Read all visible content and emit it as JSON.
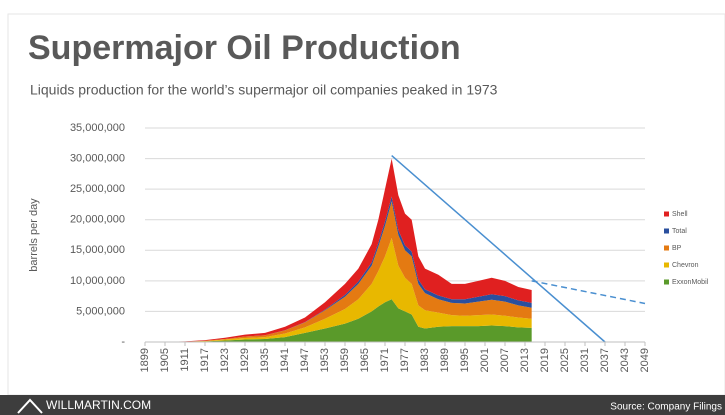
{
  "chart_data": {
    "type": "stacked_area",
    "title": "Supermajor Oil Production",
    "subtitle": "Liquids production for the world’s supermajor oil companies peaked in 1973",
    "y_label": "barrels per day",
    "branding": "WILLMARTIN.COM",
    "source": "Source: Company Filings",
    "x": [
      1899,
      1905,
      1911,
      1917,
      1923,
      1929,
      1935,
      1941,
      1947,
      1953,
      1959,
      1963,
      1967,
      1969,
      1971,
      1973,
      1975,
      1977,
      1979,
      1981,
      1983,
      1987,
      1991,
      1995,
      1999,
      2003,
      2007,
      2011,
      2015
    ],
    "series": [
      {
        "name": "ExxonMobil",
        "color": "#5a9a2a",
        "values": [
          0,
          20000,
          40000,
          100000,
          250000,
          400000,
          500000,
          800000,
          1500000,
          2200000,
          3000000,
          3800000,
          5000000,
          5800000,
          6500000,
          7000000,
          5500000,
          5000000,
          4500000,
          2500000,
          2200000,
          2500000,
          2600000,
          2600000,
          2600000,
          2700000,
          2600000,
          2400000,
          2300000
        ]
      },
      {
        "name": "Chevron",
        "color": "#e8b800",
        "values": [
          0,
          10000,
          20000,
          60000,
          150000,
          250000,
          300000,
          600000,
          900000,
          1600000,
          2400000,
          3200000,
          4500000,
          5800000,
          7500000,
          10000000,
          7000000,
          5500000,
          5000000,
          3500000,
          3000000,
          2300000,
          1800000,
          1700000,
          1800000,
          1800000,
          1700000,
          1600000,
          1500000
        ]
      },
      {
        "name": "BP",
        "color": "#e47a12",
        "values": [
          0,
          0,
          10000,
          40000,
          100000,
          250000,
          300000,
          500000,
          800000,
          1400000,
          2000000,
          2500000,
          3000000,
          4000000,
          5000000,
          6000000,
          5000000,
          4500000,
          4500000,
          3500000,
          2800000,
          2200000,
          2000000,
          2000000,
          2200000,
          2400000,
          2300000,
          2000000,
          1800000
        ]
      },
      {
        "name": "Total",
        "color": "#2a4f9e",
        "values": [
          0,
          0,
          0,
          0,
          0,
          0,
          10000,
          20000,
          50000,
          100000,
          300000,
          400000,
          500000,
          600000,
          700000,
          800000,
          800000,
          800000,
          800000,
          700000,
          600000,
          600000,
          600000,
          700000,
          800000,
          900000,
          900000,
          800000,
          800000
        ]
      },
      {
        "name": "Shell",
        "color": "#e02020",
        "values": [
          0,
          20000,
          30000,
          100000,
          200000,
          300000,
          390000,
          580000,
          750000,
          1200000,
          1800000,
          2100000,
          3000000,
          3800000,
          5300000,
          6200000,
          5700000,
          5200000,
          5200000,
          3800000,
          3400000,
          3400000,
          2500000,
          2500000,
          2600000,
          2700000,
          2500000,
          2200000,
          2100000
        ]
      }
    ],
    "trend_lines": [
      {
        "color": "#4a8fd0",
        "dashed": false,
        "x": [
          1973,
          2037
        ],
        "values": [
          30500000,
          0
        ]
      },
      {
        "color": "#4a8fd0",
        "dashed": true,
        "x": [
          2015,
          2049
        ],
        "values": [
          10000000,
          6300000
        ]
      }
    ],
    "xlim": [
      1899,
      2049
    ],
    "xticks": [
      1899,
      1905,
      1911,
      1917,
      1923,
      1929,
      1935,
      1941,
      1947,
      1953,
      1959,
      1965,
      1971,
      1977,
      1983,
      1989,
      1995,
      2001,
      2007,
      2013,
      2019,
      2025,
      2031,
      2037,
      2043,
      2049
    ],
    "ylim": [
      0,
      35000000
    ],
    "yticks": [
      {
        "value": 0,
        "label": "-"
      },
      {
        "value": 5000000,
        "label": "5,000,000"
      },
      {
        "value": 10000000,
        "label": "10,000,000"
      },
      {
        "value": 15000000,
        "label": "15,000,000"
      },
      {
        "value": 20000000,
        "label": "20,000,000"
      },
      {
        "value": 25000000,
        "label": "25,000,000"
      },
      {
        "value": 30000000,
        "label": "30,000,000"
      },
      {
        "value": 35000000,
        "label": "35,000,000"
      }
    ],
    "grid": true,
    "legend": "right",
    "legend_order": "reverse"
  }
}
